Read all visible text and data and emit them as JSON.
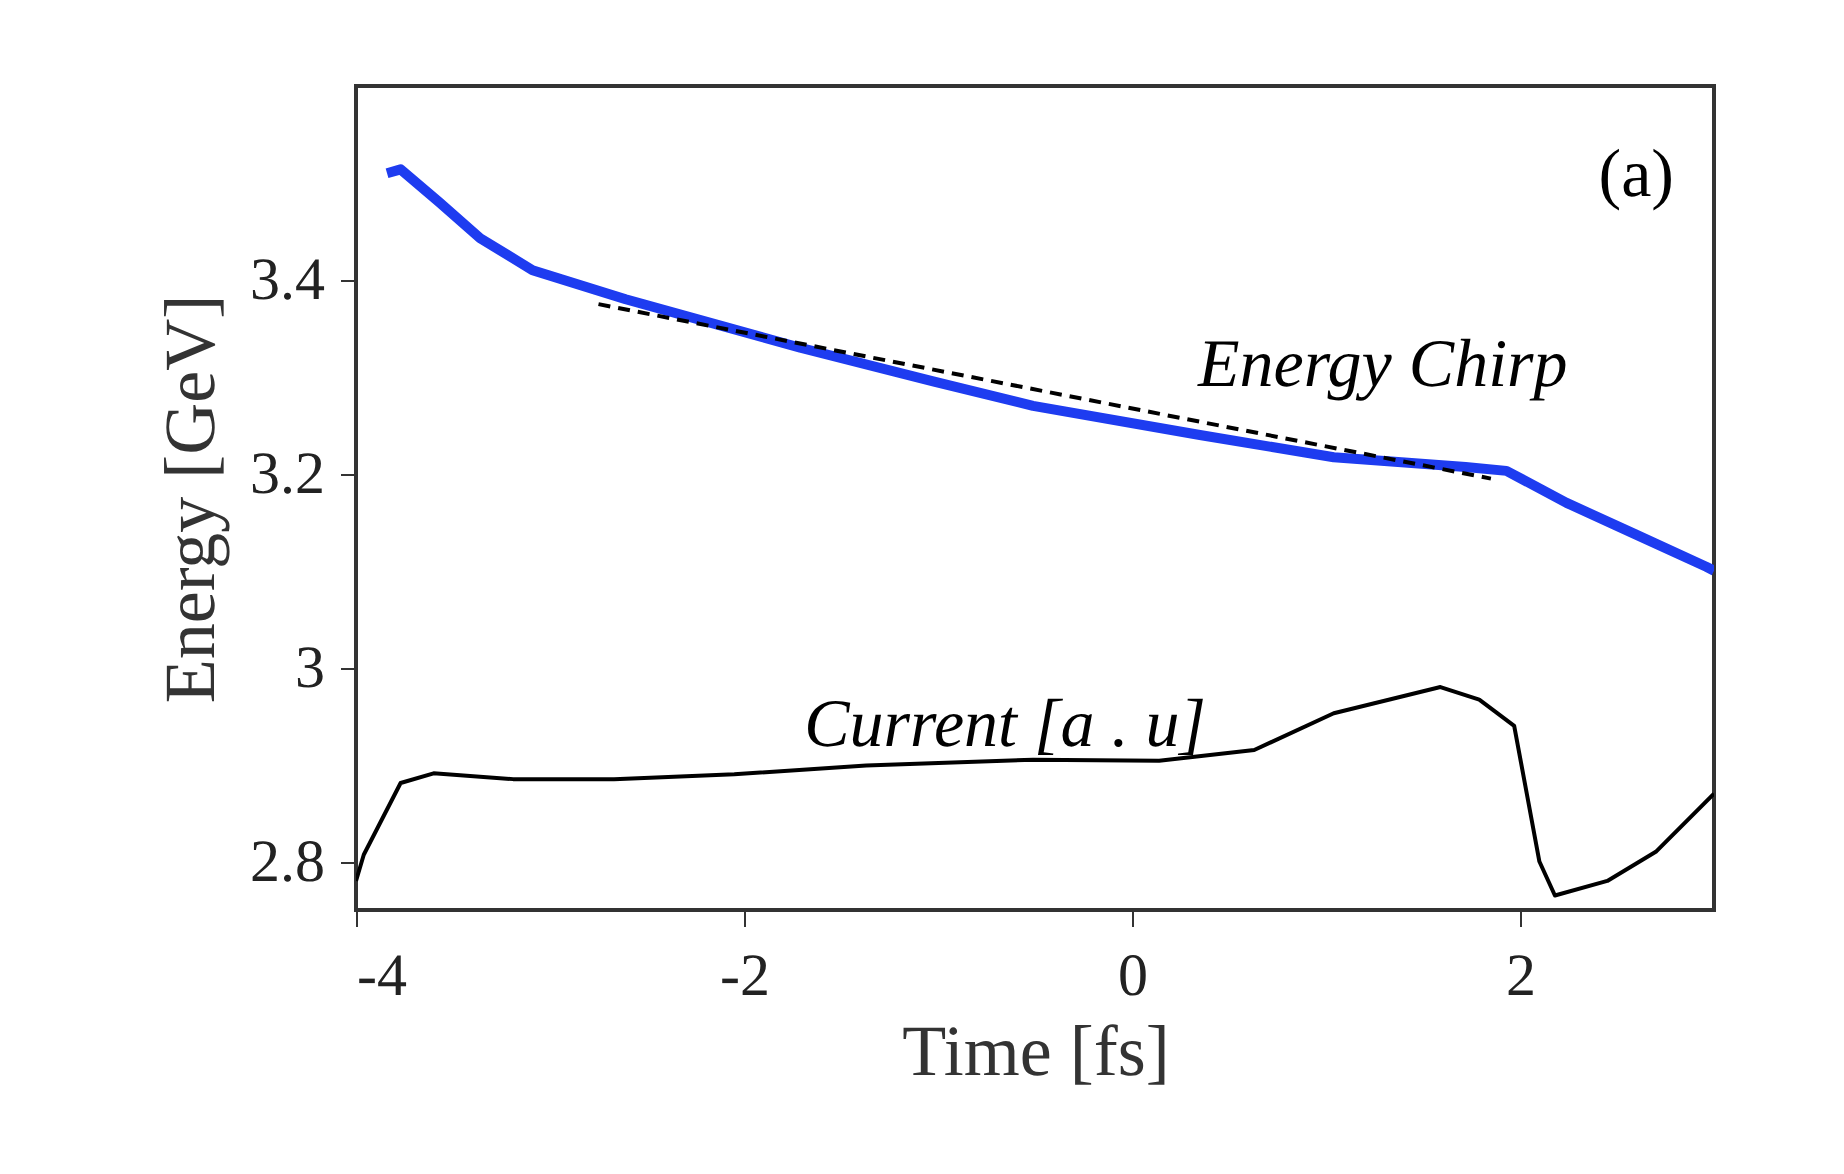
{
  "chart_data": {
    "type": "line",
    "xlabel": "Time [fs]",
    "ylabel": "Energy [GeV]",
    "xlim": [
      -4,
      3
    ],
    "ylim": [
      2.75,
      3.6
    ],
    "xticks": [
      -4,
      -2,
      0,
      2
    ],
    "yticks": [
      2.8,
      3,
      3.2,
      3.4
    ],
    "annotations": [
      "(a)"
    ],
    "series": [
      {
        "name": "Energy Chirp",
        "color": "#1e3cf0",
        "x": [
          -3.84,
          -3.77,
          -3.57,
          -3.36,
          -3.09,
          -2.61,
          -1.71,
          -1.02,
          -0.51,
          0.35,
          1.04,
          1.72,
          1.93,
          2.24,
          2.59,
          2.96,
          3.0
        ],
        "values": [
          3.51,
          3.514,
          3.48,
          3.443,
          3.41,
          3.38,
          3.33,
          3.295,
          3.27,
          3.24,
          3.217,
          3.207,
          3.203,
          3.17,
          3.138,
          3.104,
          3.1
        ]
      },
      {
        "name": "Current [a . u]",
        "color": "#000000",
        "x": [
          -4,
          -3.96,
          -3.77,
          -3.6,
          -3.19,
          -2.67,
          -2.05,
          -1.37,
          -0.51,
          0.14,
          0.63,
          1.04,
          1.59,
          1.79,
          1.97,
          2.1,
          2.18,
          2.45,
          2.7,
          3.0
        ],
        "values": [
          2.78,
          2.807,
          2.881,
          2.891,
          2.885,
          2.885,
          2.89,
          2.899,
          2.905,
          2.904,
          2.915,
          2.953,
          2.98,
          2.967,
          2.94,
          2.8,
          2.765,
          2.78,
          2.81,
          2.87
        ]
      },
      {
        "type": "line",
        "color": "#000000",
        "line_style": "dashed",
        "x": [
          -2.75,
          1.85
        ],
        "values": [
          3.375,
          3.195
        ]
      }
    ]
  }
}
